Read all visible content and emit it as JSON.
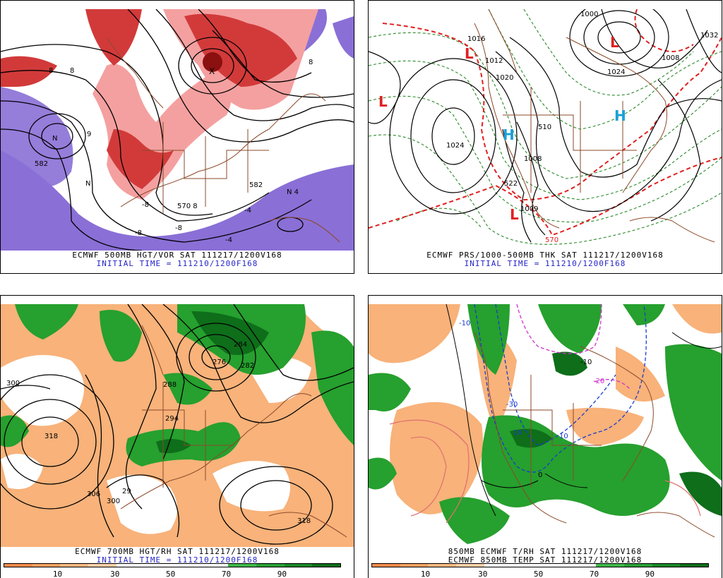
{
  "panels": [
    {
      "caption_line1": "ECMWF 500MB HGT/VOR SAT 111217/1200V168",
      "caption_line2": "INITIAL TIME = 111210/1200F168",
      "labels": [
        "582",
        "N",
        "N",
        "N 4",
        "570 8",
        "-8",
        "-4",
        "-4",
        "8",
        "8",
        "-8",
        "582",
        "-8",
        "8",
        "9",
        "X"
      ]
    },
    {
      "caption_line1": "ECMWF PRS/1000-500MB THK SAT 111217/1200V168",
      "caption_line2": "INITIAL TIME = 111210/1200F168",
      "labels": [
        "1024",
        "1016",
        "1032",
        "1000",
        "1008",
        "1012",
        "1020",
        "1024",
        "1008",
        "570",
        "510",
        "522",
        "1009"
      ],
      "highs": [
        "H",
        "H"
      ],
      "lows": [
        "L",
        "L",
        "L",
        "L"
      ]
    },
    {
      "caption_line1": "ECMWF 700MB HGT/RH SAT 111217/1200V168",
      "caption_line2": "INITIAL TIME = 111210/1200F168",
      "labels": [
        "300",
        "318",
        "288",
        "294",
        "284",
        "276",
        "282",
        "306",
        "300",
        "29",
        "318"
      ],
      "colorbar_ticks": [
        "10",
        "30",
        "50",
        "70",
        "90"
      ]
    },
    {
      "caption_line1": "850MB ECMWF T/RH SAT 111217/1200V168",
      "caption_line2": "ECMWF 850MB TEMP SAT 111217/1200V168",
      "labels": [
        "-10",
        "-20",
        "-30",
        "-10",
        "10",
        "10",
        "0"
      ],
      "colorbar_ticks": [
        "10",
        "30",
        "50",
        "70",
        "90"
      ]
    }
  ],
  "colors": {
    "vort_red": "#d23a3a",
    "vort_light": "#f4a0a0",
    "vort_purple": "#8a6fd6",
    "rh_orange": "#f5a05a",
    "rh_green": "#1e9a2a",
    "border_brown": "#8b4a2a",
    "pressure_green": "#2a8a2a",
    "thickness_red": "#e02020",
    "high_blue": "#19a0d8",
    "low_red": "#e02020"
  }
}
